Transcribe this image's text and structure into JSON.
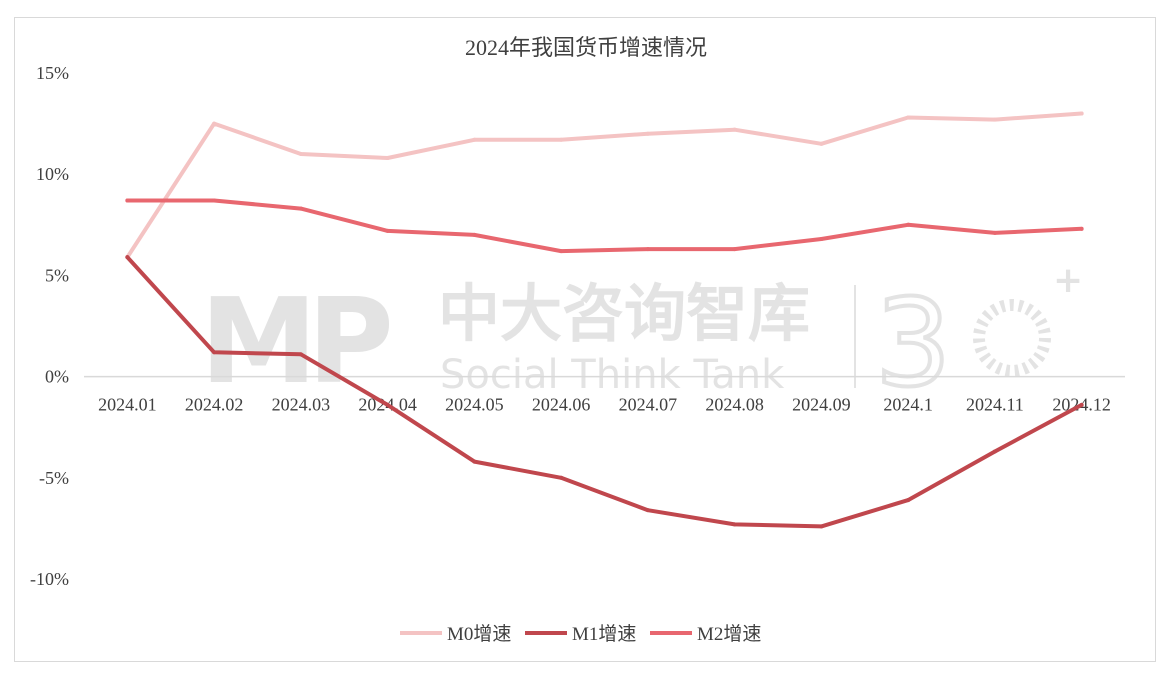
{
  "watermark": {
    "logo": "MP",
    "name_cn": "中大咨询智库",
    "name_en": "Social Think Tank"
  },
  "chart_data": {
    "type": "line",
    "title": "2024年我国货币增速情况",
    "categories": [
      "2024.01",
      "2024.02",
      "2024.03",
      "2024.04",
      "2024.05",
      "2024.06",
      "2024.07",
      "2024.08",
      "2024.09",
      "2024.1",
      "2024.11",
      "2024.12"
    ],
    "series": [
      {
        "name": "M0增速",
        "color": "#f4c3c3",
        "values": [
          5.9,
          12.5,
          11.0,
          10.8,
          11.7,
          11.7,
          12.0,
          12.2,
          11.5,
          12.8,
          12.7,
          13.0
        ]
      },
      {
        "name": "M1增速",
        "color": "#c0474d",
        "values": [
          5.9,
          1.2,
          1.1,
          -1.4,
          -4.2,
          -5.0,
          -6.6,
          -7.3,
          -7.4,
          -6.1,
          -3.7,
          -1.4
        ]
      },
      {
        "name": "M2增速",
        "color": "#e8676f",
        "values": [
          8.7,
          8.7,
          8.3,
          7.2,
          7.0,
          6.2,
          6.3,
          6.3,
          6.8,
          7.5,
          7.1,
          7.3
        ]
      }
    ],
    "y_ticks": [
      "15%",
      "10%",
      "5%",
      "0%",
      "-5%",
      "-10%"
    ],
    "ylim": [
      -10,
      15
    ],
    "grid": false,
    "legend_position": "bottom"
  }
}
